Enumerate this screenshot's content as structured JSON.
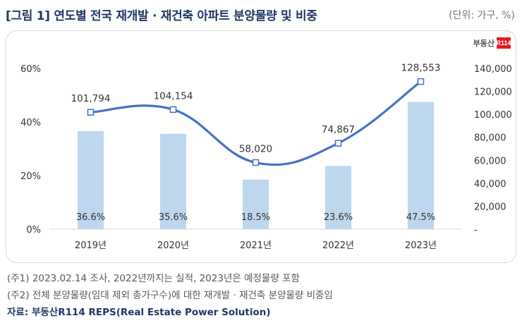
{
  "title": "[그림 1] 연도별 전국 재개발 · 재건축 아파트 분양물량 및 비중",
  "unit_label": "(단위: 가구, %)",
  "logo": {
    "text": "부동산",
    "badge": "R114"
  },
  "chart_data": {
    "type": "bar+line",
    "categories": [
      "2019년",
      "2020년",
      "2021년",
      "2022년",
      "2023년"
    ],
    "bar_series": {
      "name": "비중",
      "values": [
        36.6,
        35.6,
        18.5,
        23.6,
        47.5
      ],
      "labels": [
        "36.6%",
        "35.6%",
        "18.5%",
        "23.6%",
        "47.5%"
      ],
      "axis": "left"
    },
    "line_series": {
      "name": "재개발·재건축 분양물량",
      "values": [
        101794,
        104154,
        58020,
        74867,
        128553
      ],
      "labels": [
        "101,794",
        "104,154",
        "58,020",
        "74,867",
        "128,553"
      ],
      "axis": "right"
    },
    "left_axis": {
      "min": 0,
      "max": 60,
      "ticks": [
        "0%",
        "20%",
        "40%",
        "60%"
      ],
      "tick_values": [
        0,
        20,
        40,
        60
      ]
    },
    "right_axis": {
      "min": 0,
      "max": 140000,
      "ticks": [
        "-",
        "20,000",
        "40,000",
        "60,000",
        "80,000",
        "100,000",
        "120,000",
        "140,000"
      ],
      "tick_values": [
        0,
        20000,
        40000,
        60000,
        80000,
        100000,
        120000,
        140000
      ]
    },
    "colors": {
      "bar": "#bdd7ee",
      "line": "#4472c4",
      "marker_fill": "#ffffff"
    }
  },
  "notes": {
    "note1": "(주1) 2023.02.14 조사, 2022년까지는 실적, 2023년은 예정물량 포함",
    "note2": "(주2) 전체 분양물량(임대 제외 총가구수)에 대한 재개발 · 재건축 분양물량 비중임",
    "source": "자료: 부동산R114 REPS(Real Estate Power Solution)"
  }
}
